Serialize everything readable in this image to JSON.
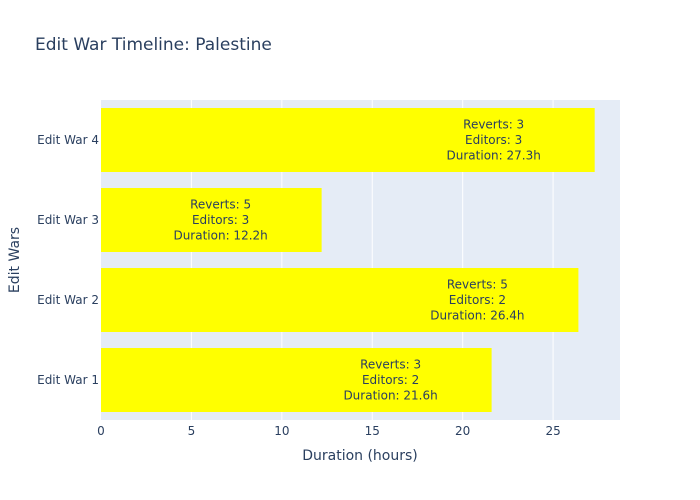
{
  "chart_data": {
    "type": "bar",
    "orientation": "horizontal",
    "title": "Edit War Timeline: Palestine",
    "xlabel": "Duration (hours)",
    "ylabel": "Edit Wars",
    "categories": [
      "Edit War 1",
      "Edit War 2",
      "Edit War 3",
      "Edit War 4"
    ],
    "values": [
      21.6,
      26.4,
      12.2,
      27.3
    ],
    "labels": [
      [
        "Reverts: 3",
        "Editors: 2",
        "Duration: 21.6h"
      ],
      [
        "Reverts: 5",
        "Editors: 2",
        "Duration: 26.4h"
      ],
      [
        "Reverts: 5",
        "Editors: 3",
        "Duration: 12.2h"
      ],
      [
        "Reverts: 3",
        "Editors: 3",
        "Duration: 27.3h"
      ]
    ],
    "xticks": [
      "0",
      "5",
      "10",
      "15",
      "20",
      "25"
    ],
    "xlim": [
      0,
      28.7
    ],
    "grid": true,
    "legend": "none",
    "colors": {
      "bar": "#ffff00",
      "plot_bg": "#e5ecf6",
      "grid": "#ffffff",
      "text": "#2a3f5f"
    }
  }
}
